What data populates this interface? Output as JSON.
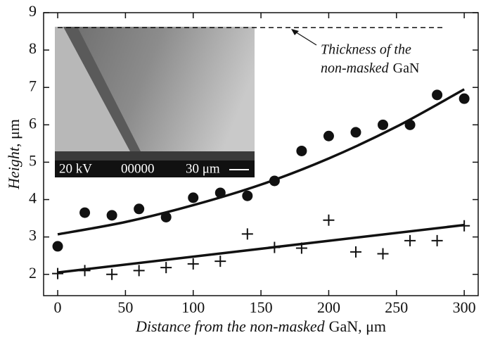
{
  "chart_data": {
    "type": "scatter",
    "x_label": [
      "Distance from the non-masked",
      "GaN, μm"
    ],
    "y_label": [
      "Height",
      ", μm"
    ],
    "annotation": [
      "Thickness of the",
      "non-masked",
      "GaN"
    ],
    "inset_labels": [
      "20 kV",
      "00000",
      "30 μm"
    ],
    "xlim": [
      -10.4,
      310.3
    ],
    "ylim": [
      1.43,
      9
    ],
    "xticks": [
      0,
      50,
      100,
      150,
      200,
      250,
      300
    ],
    "yticks": [
      2,
      3,
      4,
      5,
      6,
      7,
      8,
      9
    ],
    "reference_line": {
      "y": 8.6,
      "x": [
        0,
        285
      ]
    },
    "series": [
      {
        "marker": "circle",
        "color": "#111111",
        "x": [
          0,
          20,
          40,
          60,
          80,
          100,
          120,
          140,
          160,
          180,
          200,
          220,
          240,
          260,
          280,
          300
        ],
        "values": [
          2.75,
          3.65,
          3.58,
          3.75,
          3.53,
          4.05,
          4.18,
          4.1,
          4.5,
          5.3,
          5.7,
          5.8,
          6.0,
          6.0,
          6.8,
          6.7
        ]
      },
      {
        "marker": "plus",
        "color": "#111111",
        "x": [
          0,
          20,
          40,
          60,
          80,
          100,
          120,
          140,
          160,
          180,
          200,
          220,
          240,
          260,
          280,
          300
        ],
        "values": [
          2.02,
          2.1,
          2.0,
          2.1,
          2.18,
          2.28,
          2.35,
          3.08,
          2.72,
          2.7,
          3.45,
          2.6,
          2.55,
          2.9,
          2.9,
          3.3
        ]
      },
      {
        "marker": "line",
        "color": "#111111",
        "x": [
          0,
          50,
          100,
          150,
          200,
          250,
          300
        ],
        "values": [
          3.07,
          3.4,
          3.85,
          4.4,
          5.1,
          5.95,
          6.95
        ]
      },
      {
        "marker": "line",
        "color": "#111111",
        "x": [
          0,
          300
        ],
        "values": [
          2.05,
          3.32
        ]
      }
    ]
  }
}
